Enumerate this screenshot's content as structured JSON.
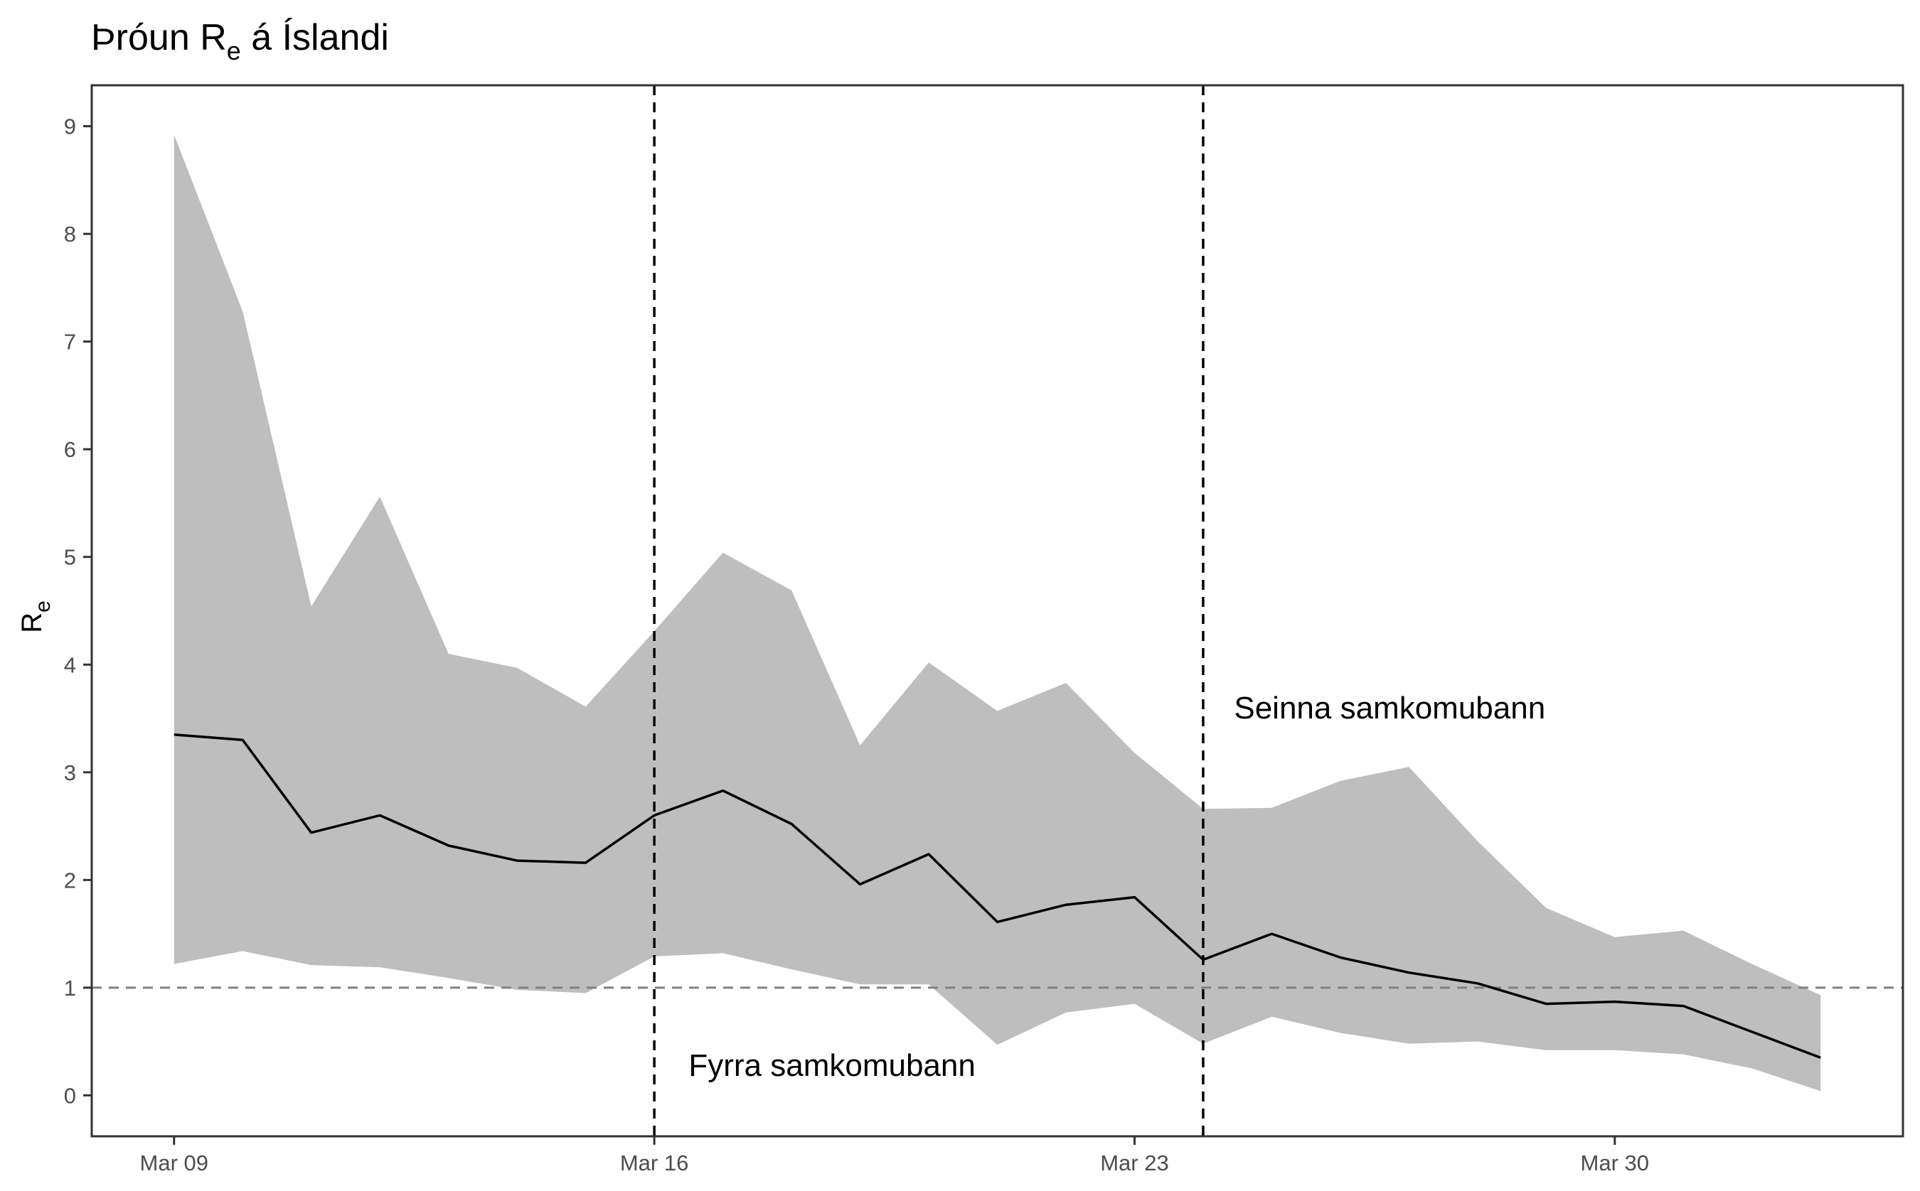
{
  "chart_data": {
    "type": "line",
    "title": {
      "prefix": "Þróun R",
      "subscript": "e",
      "suffix": " á Íslandi"
    },
    "ylabel": {
      "main": "R",
      "subscript": "e"
    },
    "xlabel": "",
    "x_tick_labels": [
      "Mar 09",
      "Mar 16",
      "Mar 23",
      "Mar 30"
    ],
    "x_tick_values": [
      "2020-03-09",
      "2020-03-16",
      "2020-03-23",
      "2020-03-30"
    ],
    "x": [
      "2020-03-09",
      "2020-03-10",
      "2020-03-11",
      "2020-03-12",
      "2020-03-13",
      "2020-03-14",
      "2020-03-15",
      "2020-03-16",
      "2020-03-17",
      "2020-03-18",
      "2020-03-19",
      "2020-03-20",
      "2020-03-21",
      "2020-03-22",
      "2020-03-23",
      "2020-03-24",
      "2020-03-25",
      "2020-03-26",
      "2020-03-27",
      "2020-03-28",
      "2020-03-29",
      "2020-03-30",
      "2020-03-31",
      "2020-04-01",
      "2020-04-02"
    ],
    "xlim": [
      "2020-03-07.8",
      "2020-04-03.2"
    ],
    "y_ticks": [
      0,
      1,
      2,
      3,
      4,
      5,
      6,
      7,
      8,
      9
    ],
    "ylim": [
      -0.38,
      9.38
    ],
    "series": [
      {
        "kind": "median",
        "color": "#000000",
        "values": [
          3.35,
          3.3,
          2.44,
          2.6,
          2.32,
          2.18,
          2.16,
          2.6,
          2.83,
          2.52,
          1.96,
          2.24,
          1.61,
          1.77,
          1.84,
          1.26,
          1.5,
          1.28,
          1.14,
          1.04,
          0.85,
          0.87,
          0.83,
          0.59,
          0.35
        ]
      },
      {
        "kind": "interval",
        "color": "#bebebe",
        "lower": [
          1.22,
          1.34,
          1.21,
          1.19,
          1.09,
          0.98,
          0.95,
          1.29,
          1.32,
          1.17,
          1.03,
          1.03,
          0.47,
          0.77,
          0.85,
          0.48,
          0.73,
          0.58,
          0.48,
          0.5,
          0.42,
          0.42,
          0.38,
          0.25,
          0.04
        ],
        "upper": [
          8.92,
          7.28,
          4.54,
          5.56,
          4.1,
          3.97,
          3.61,
          4.31,
          5.04,
          4.69,
          3.25,
          4.02,
          3.57,
          3.83,
          3.18,
          2.66,
          2.67,
          2.92,
          3.05,
          2.36,
          1.74,
          1.47,
          1.53,
          1.22,
          0.93
        ]
      }
    ],
    "reference_lines": [
      {
        "orientation": "horizontal",
        "y": 1,
        "style": "dashed",
        "color": "#808080"
      },
      {
        "orientation": "vertical",
        "x": "2020-03-16",
        "style": "dashed",
        "color": "#000000"
      },
      {
        "orientation": "vertical",
        "x": "2020-03-24",
        "style": "dashed",
        "color": "#000000"
      }
    ],
    "annotations": [
      {
        "text": "Fyrra samkomubann",
        "x": "2020-03-16.5",
        "y": 0.18,
        "anchor": "start"
      },
      {
        "text": "Seinna samkomubann",
        "x": "2020-03-24.45",
        "y": 3.5,
        "anchor": "start"
      }
    ],
    "grid": false,
    "legend": "none"
  }
}
